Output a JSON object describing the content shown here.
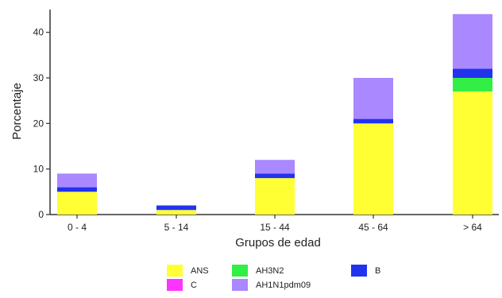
{
  "chart_data": {
    "type": "bar",
    "stacked": true,
    "title": "",
    "xlabel": "Grupos de edad",
    "ylabel": "Porcentaje",
    "categories": [
      "0 - 4",
      "5 - 14",
      "15 - 44",
      "45 - 64",
      "> 64"
    ],
    "ylim": [
      0,
      45
    ],
    "yticks": [
      0,
      10,
      20,
      30,
      40
    ],
    "grid": false,
    "legend_position": "bottom",
    "series": [
      {
        "name": "ANS",
        "color": "#ffff33",
        "values": [
          5,
          1,
          8,
          20,
          27
        ]
      },
      {
        "name": "AH3N2",
        "color": "#33ee44",
        "values": [
          0,
          0,
          0,
          0,
          3
        ]
      },
      {
        "name": "B",
        "color": "#2233ee",
        "values": [
          1,
          1,
          1,
          1,
          2
        ]
      },
      {
        "name": "C",
        "color": "#ff33ff",
        "values": [
          0,
          0,
          0,
          0,
          0
        ]
      },
      {
        "name": "AH1N1pdm09",
        "color": "#aa88ff",
        "values": [
          3,
          0,
          3,
          9,
          12
        ]
      }
    ],
    "legend_order": [
      "ANS",
      "AH3N2",
      "B",
      "C",
      "AH1N1pdm09"
    ]
  }
}
